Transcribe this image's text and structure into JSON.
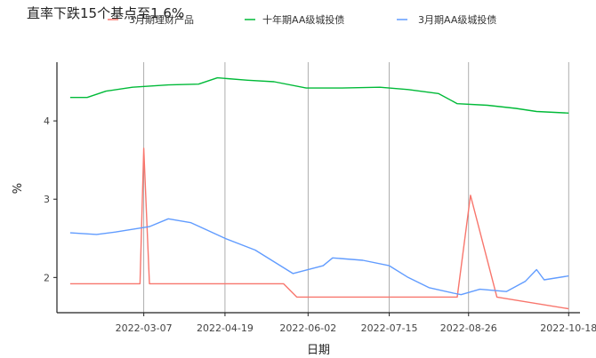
{
  "chart_data": {
    "type": "line",
    "title": "直率下跌15个基点至1.6%",
    "xlabel": "日期",
    "ylabel": "%",
    "x_ticks": [
      "2022-03-07",
      "2022-04-19",
      "2022-06-02",
      "2022-07-15",
      "2022-08-26",
      "2022-10-18"
    ],
    "y_ticks": [
      2,
      3,
      4
    ],
    "xlim": [
      "2022-01-20",
      "2022-10-24"
    ],
    "ylim": [
      1.55,
      4.75
    ],
    "grid": "vertical-major",
    "legend_position": "top",
    "series": [
      {
        "name": "3月期理财产品",
        "color": "#F8766D",
        "points": [
          [
            "2022-01-27",
            1.92
          ],
          [
            "2022-03-05",
            1.92
          ],
          [
            "2022-03-07",
            3.65
          ],
          [
            "2022-03-10",
            1.92
          ],
          [
            "2022-05-20",
            1.92
          ],
          [
            "2022-05-27",
            1.75
          ],
          [
            "2022-08-20",
            1.75
          ],
          [
            "2022-08-27",
            3.05
          ],
          [
            "2022-09-10",
            1.75
          ],
          [
            "2022-10-18",
            1.6
          ]
        ]
      },
      {
        "name": "十年期AA级城投债",
        "color": "#00BA38",
        "points": [
          [
            "2022-01-27",
            4.3
          ],
          [
            "2022-02-05",
            4.3
          ],
          [
            "2022-02-15",
            4.38
          ],
          [
            "2022-03-01",
            4.43
          ],
          [
            "2022-03-20",
            4.46
          ],
          [
            "2022-04-05",
            4.47
          ],
          [
            "2022-04-15",
            4.55
          ],
          [
            "2022-05-01",
            4.52
          ],
          [
            "2022-05-15",
            4.5
          ],
          [
            "2022-06-01",
            4.42
          ],
          [
            "2022-06-20",
            4.42
          ],
          [
            "2022-07-10",
            4.43
          ],
          [
            "2022-07-25",
            4.4
          ],
          [
            "2022-08-10",
            4.35
          ],
          [
            "2022-08-20",
            4.22
          ],
          [
            "2022-09-05",
            4.2
          ],
          [
            "2022-09-20",
            4.16
          ],
          [
            "2022-10-01",
            4.12
          ],
          [
            "2022-10-18",
            4.1
          ]
        ]
      },
      {
        "name": "3月期AA级城投债",
        "color": "#619CFF",
        "points": [
          [
            "2022-01-27",
            2.57
          ],
          [
            "2022-02-10",
            2.55
          ],
          [
            "2022-02-20",
            2.58
          ],
          [
            "2022-03-10",
            2.65
          ],
          [
            "2022-03-20",
            2.75
          ],
          [
            "2022-04-01",
            2.7
          ],
          [
            "2022-04-19",
            2.5
          ],
          [
            "2022-05-05",
            2.35
          ],
          [
            "2022-05-25",
            2.05
          ],
          [
            "2022-06-10",
            2.15
          ],
          [
            "2022-06-15",
            2.25
          ],
          [
            "2022-07-01",
            2.22
          ],
          [
            "2022-07-15",
            2.15
          ],
          [
            "2022-07-25",
            2.0
          ],
          [
            "2022-08-05",
            1.87
          ],
          [
            "2022-08-18",
            1.8
          ],
          [
            "2022-08-22",
            1.78
          ],
          [
            "2022-09-01",
            1.85
          ],
          [
            "2022-09-15",
            1.82
          ],
          [
            "2022-09-25",
            1.95
          ],
          [
            "2022-10-01",
            2.1
          ],
          [
            "2022-10-05",
            1.97
          ],
          [
            "2022-10-18",
            2.02
          ]
        ]
      }
    ]
  }
}
